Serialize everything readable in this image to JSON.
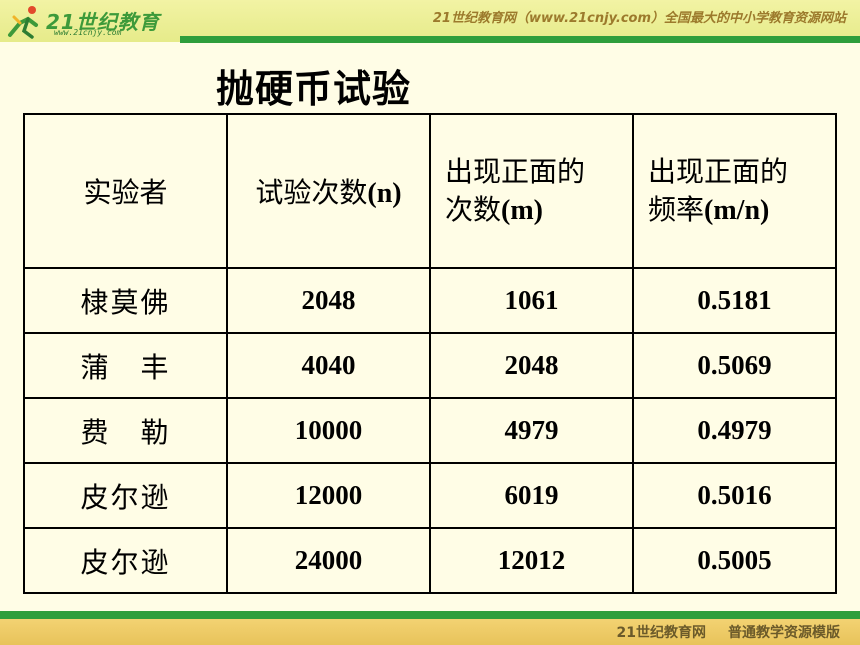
{
  "header": {
    "logo_text": "21世纪教育",
    "logo_url": "www.21cnjy.com",
    "slogan": "21世纪教育网（www.21cnjy.com）全国最大的中小学教育资源网站"
  },
  "title": "抛硬币试验",
  "table": {
    "headers": {
      "h1": "实验者",
      "h2_text": "试验次数",
      "h2_sym": "(n)",
      "h3_line1": "出现正面的",
      "h3_text": "次数",
      "h3_sym": "(m)",
      "h4_line1": "出现正面的",
      "h4_text": "频率",
      "h4_sym": "(m/n)"
    },
    "rows": [
      {
        "name": "棣莫佛",
        "n": "2048",
        "m": "1061",
        "freq": "0.5181"
      },
      {
        "name": "蒲　丰",
        "n": "4040",
        "m": "2048",
        "freq": "0.5069"
      },
      {
        "name": "费　勒",
        "n": "10000",
        "m": "4979",
        "freq": "0.4979"
      },
      {
        "name": "皮尔逊",
        "n": "12000",
        "m": "6019",
        "freq": "0.5016"
      },
      {
        "name": "皮尔逊",
        "n": "24000",
        "m": "12012",
        "freq": "0.5005"
      }
    ]
  },
  "footer": {
    "site": "21世纪教育网",
    "tagline": "普通教学资源模版"
  },
  "colors": {
    "background": "#FFFDE6",
    "stripe_green": "#2E9E3C",
    "top_bar": "#E6EB8A",
    "bottom_bar": "#E8C35A"
  }
}
